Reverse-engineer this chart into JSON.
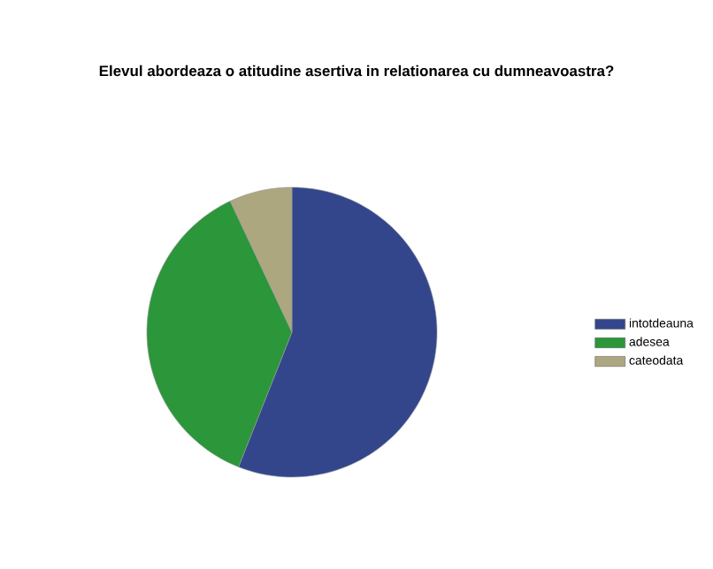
{
  "chart_data": {
    "type": "pie",
    "title": "Elevul abordeaza o atitudine asertiva in relationarea cu dumneavoastra?",
    "categories": [
      "intotdeauna",
      "adesea",
      "cateodata"
    ],
    "values": [
      56,
      37,
      7
    ],
    "colors": [
      "#33468c",
      "#2b963a",
      "#ada77f"
    ],
    "legend": "right"
  }
}
